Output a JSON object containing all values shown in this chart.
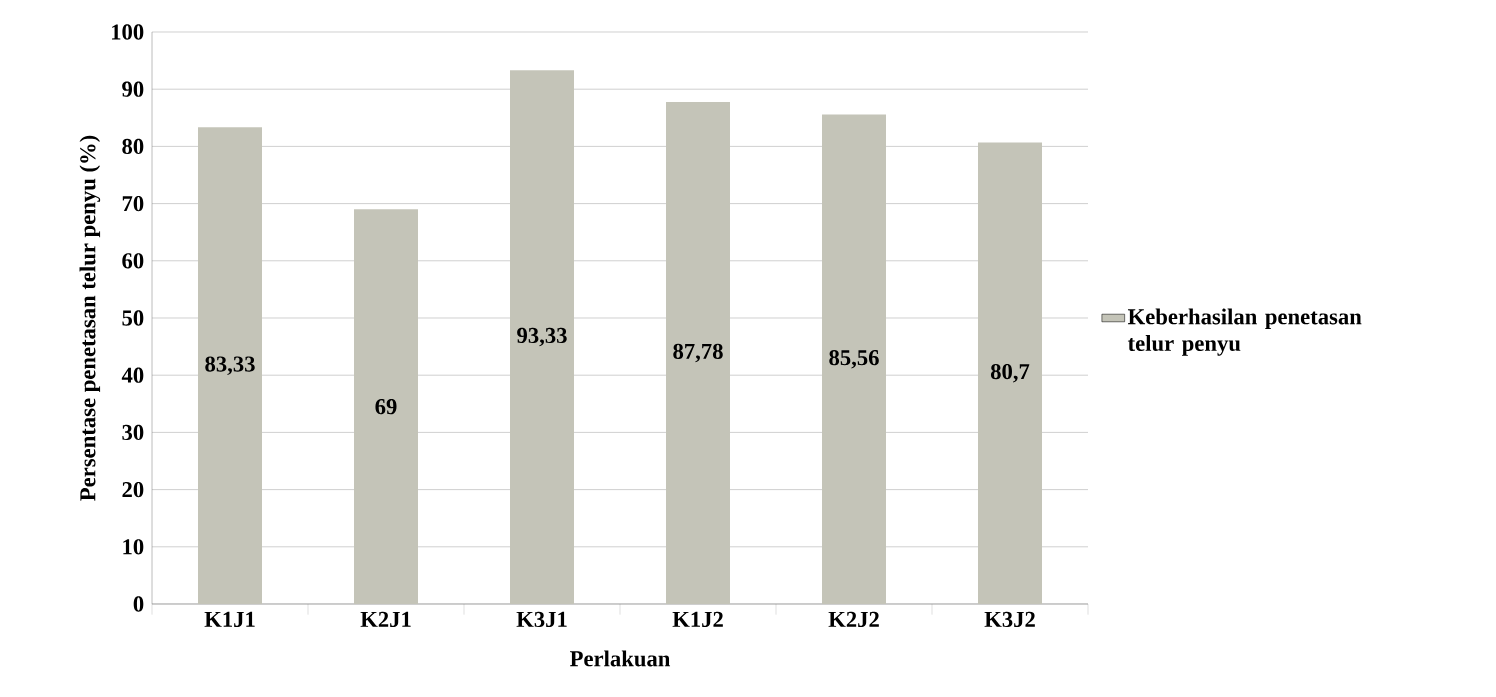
{
  "chart_data": {
    "type": "bar",
    "categories": [
      "K1J1",
      "K2J1",
      "K3J1",
      "K1J2",
      "K2J2",
      "K3J2"
    ],
    "series": [
      {
        "name": "Keberhasilan penetasan telur penyu",
        "color": "#c4c4b8",
        "values": [
          83.33,
          69,
          93.33,
          87.78,
          85.56,
          80.7
        ],
        "value_labels": [
          "83,33",
          "69",
          "93,33",
          "87,78",
          "85,56",
          "80,7"
        ]
      }
    ],
    "xlabel": "Perlakuan",
    "ylabel": "Persentase penetasan telur penyu (%)",
    "ylim": [
      0,
      100
    ],
    "yticks": [
      0,
      10,
      20,
      30,
      40,
      50,
      60,
      70,
      80,
      90,
      100
    ],
    "grid": "y",
    "legend": "right"
  }
}
